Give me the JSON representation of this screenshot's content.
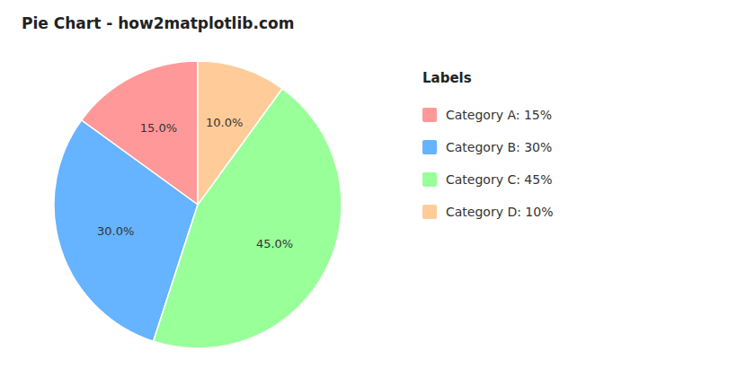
{
  "chart_data": {
    "type": "pie",
    "title": "Pie Chart - how2matplotlib.com",
    "categories": [
      "Category A: 15%",
      "Category B: 30%",
      "Category C: 45%",
      "Category D: 10%"
    ],
    "values": [
      15.0,
      30.0,
      45.0,
      10.0
    ],
    "value_labels": [
      "15.0%",
      "30.0%",
      "45.0%",
      "10.0%"
    ],
    "colors": [
      "#ff9999",
      "#66b3ff",
      "#99ff99",
      "#ffcc99"
    ],
    "data_labels": true,
    "legend": "right",
    "annotations": [
      "Labels"
    ]
  }
}
